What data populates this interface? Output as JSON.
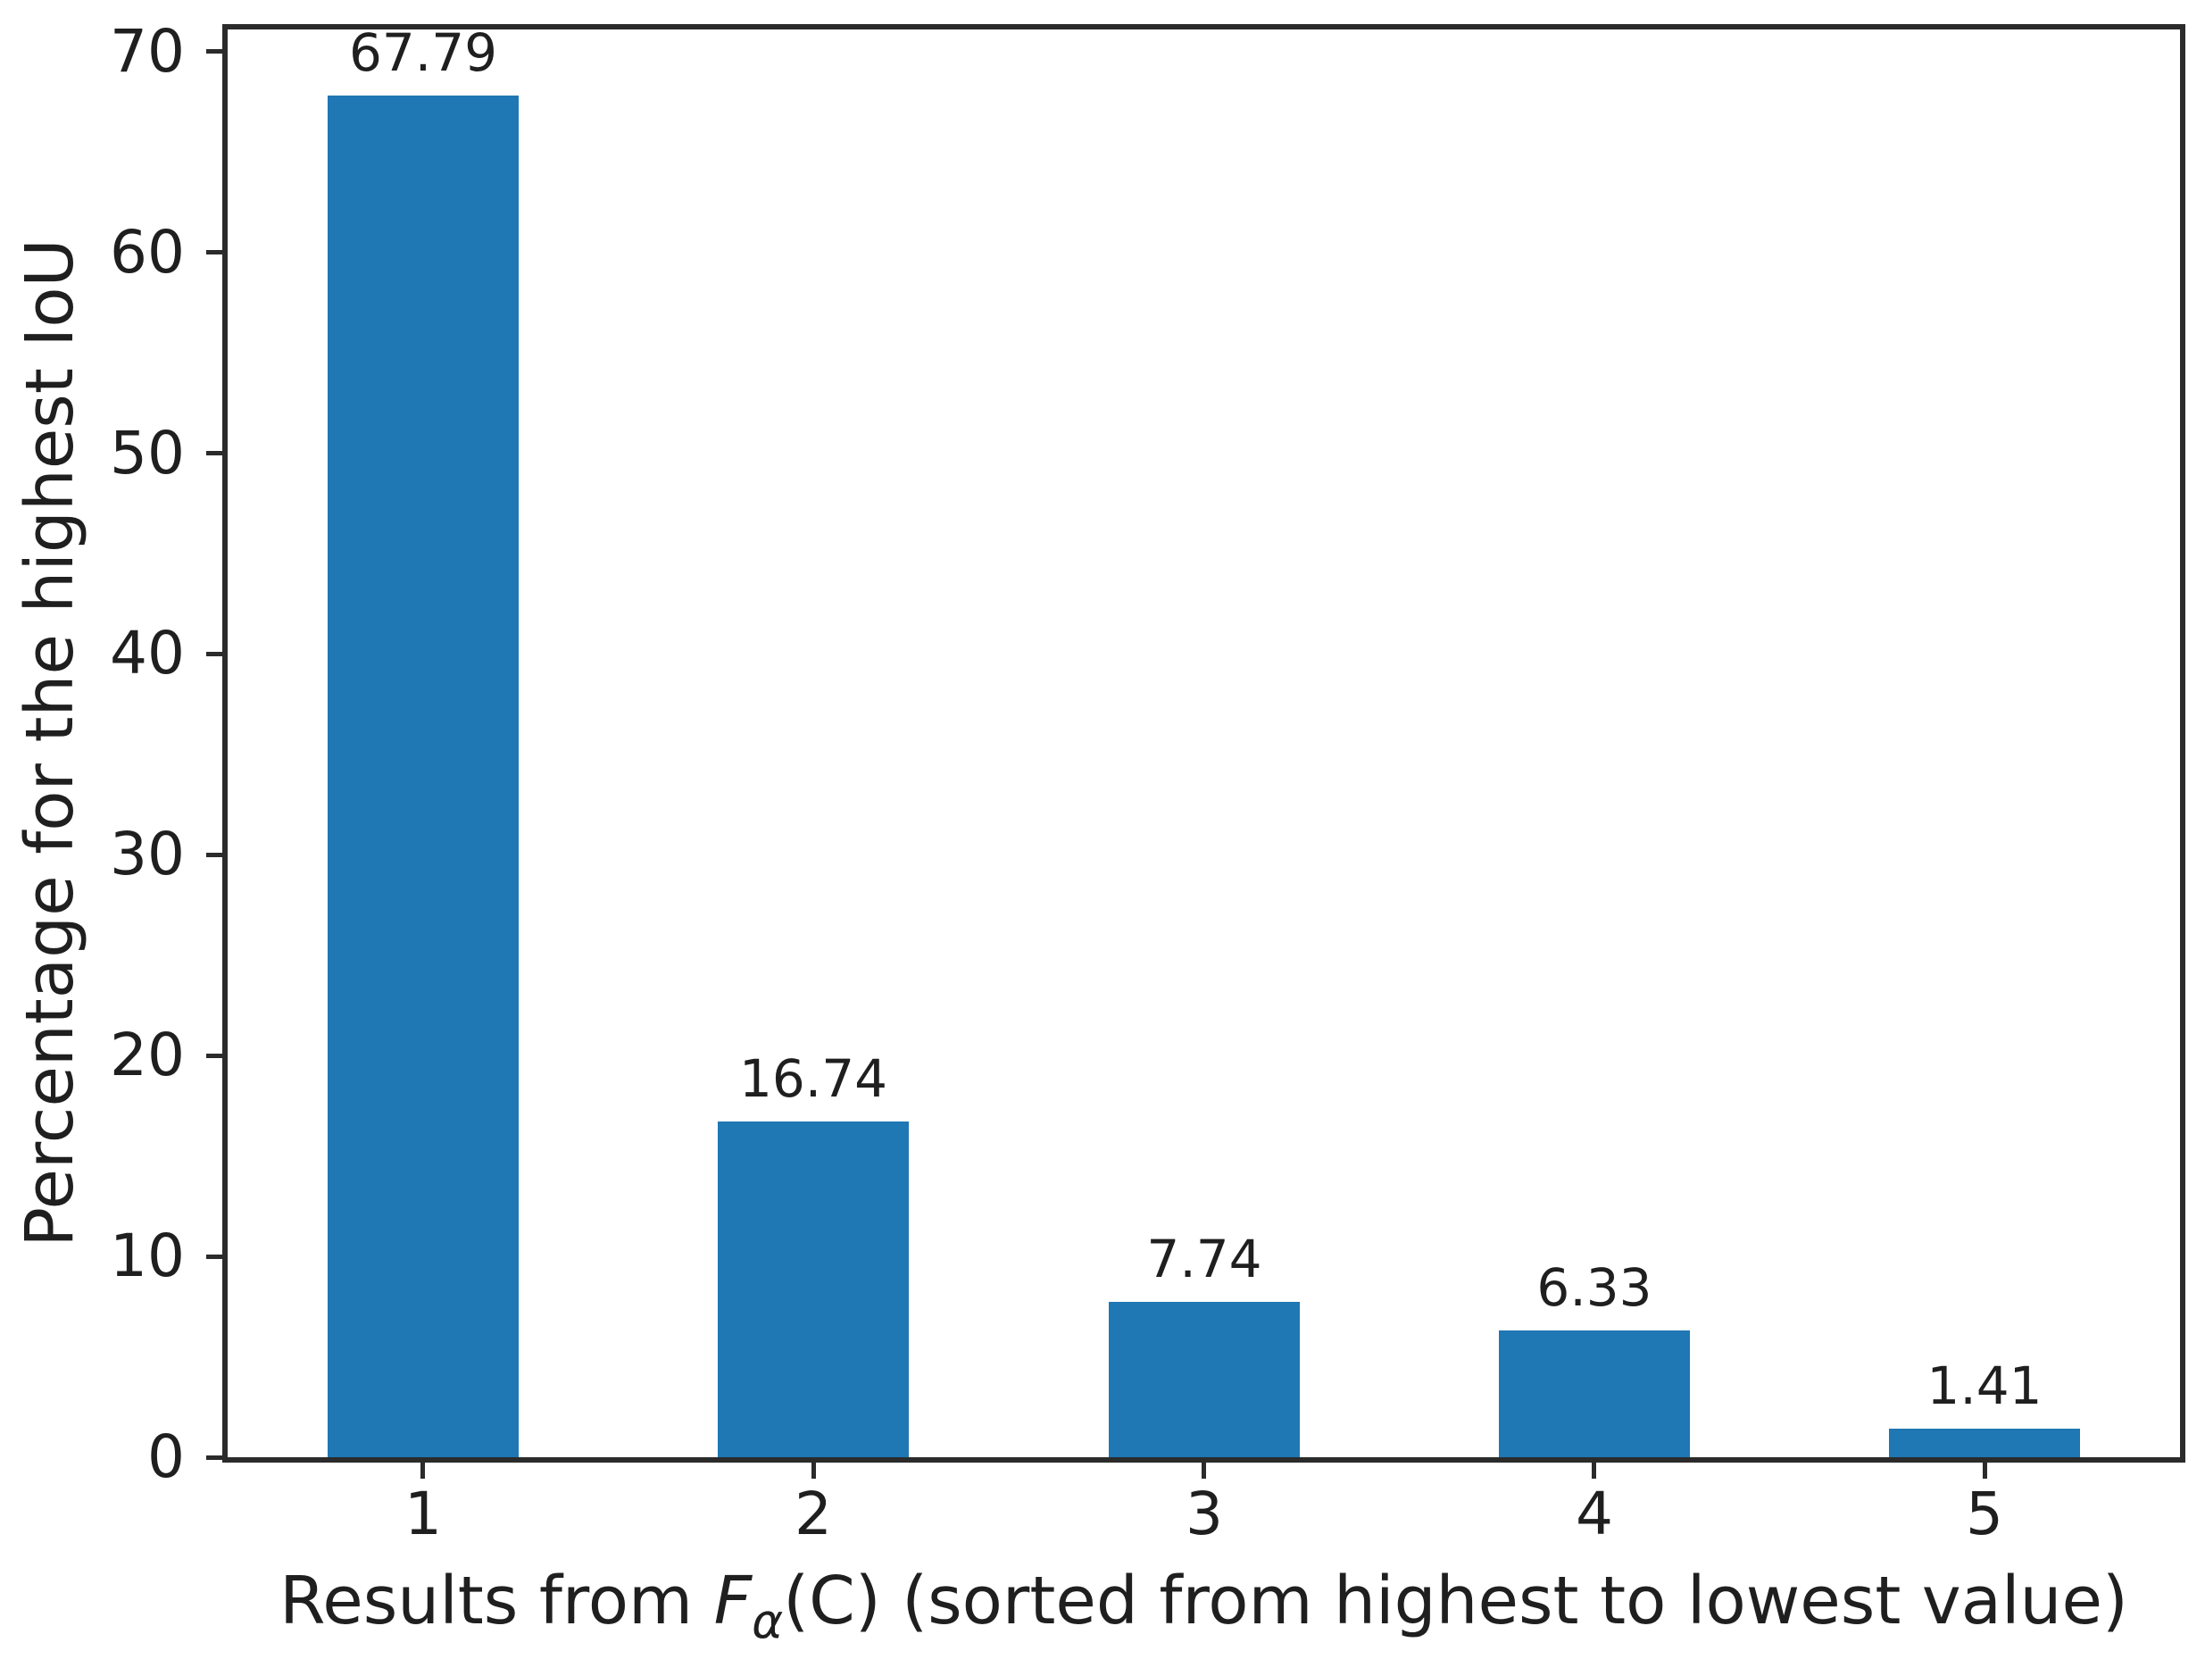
{
  "figure": {
    "background": "#ffffff",
    "spine_color": "#2b2b2b",
    "text_color": "#1f1f1f"
  },
  "chart_data": {
    "type": "bar",
    "categories": [
      "1",
      "2",
      "3",
      "4",
      "5"
    ],
    "values": [
      67.79,
      16.74,
      7.74,
      6.33,
      1.41
    ],
    "bar_labels": [
      "67.79",
      "16.74",
      "7.74",
      "6.33",
      "1.41"
    ],
    "title": "",
    "xlabel": "Results from Fα(C) (sorted from highest to lowest value)",
    "xlabel_parts": {
      "prefix": "Results from ",
      "func_symbol": "F",
      "func_subscript": "α",
      "suffix": "(C) (sorted from highest to lowest value)"
    },
    "ylabel": "Percentage for the highest IoU",
    "yticks": [
      0,
      10,
      20,
      30,
      40,
      50,
      60,
      70
    ],
    "ylim": [
      0,
      71.1
    ],
    "grid": false,
    "legend": null,
    "bar_color": "#1f77b4",
    "bar_width_fraction": 0.49
  }
}
